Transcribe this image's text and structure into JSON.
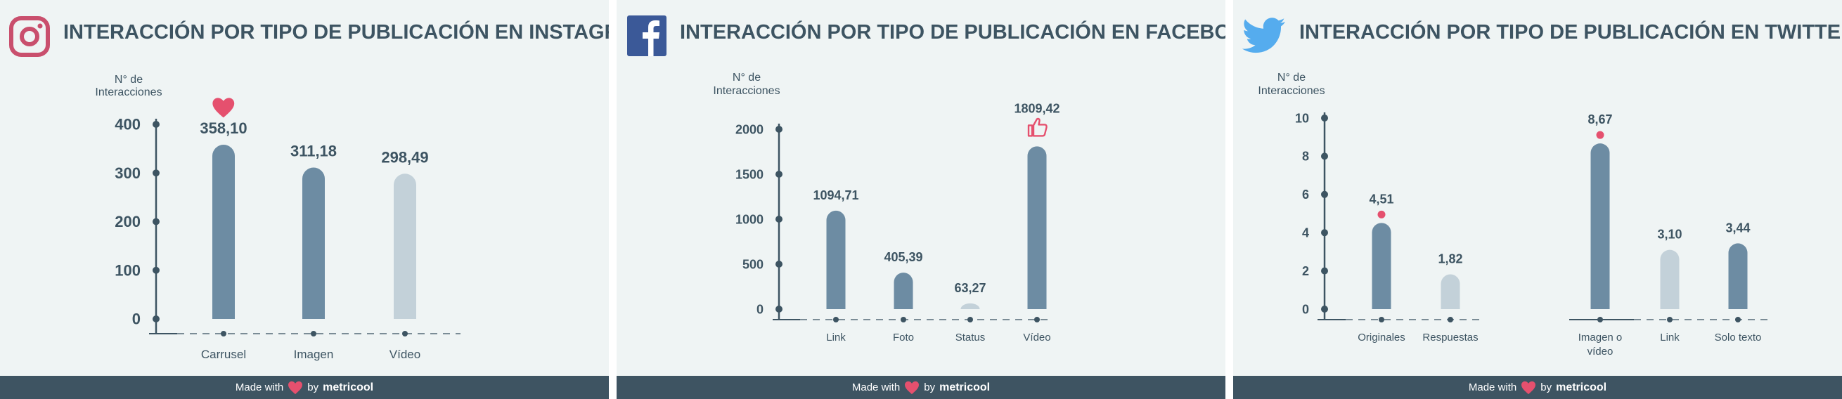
{
  "footer": {
    "made_with": "Made with",
    "by": "by",
    "brand": "metricool"
  },
  "colors": {
    "dark": "#6d8ca3",
    "light": "#c3d1d9",
    "accent": "#e5506e",
    "axis": "#3d5462"
  },
  "chart_data": [
    {
      "type": "bar",
      "platform": "instagram",
      "title": "INTERACCIÓN POR TIPO DE PUBLICACIÓN EN INSTAGRAM",
      "ylabel_line1": "N° de",
      "ylabel_line2": "Interacciones",
      "ylim": [
        0,
        400
      ],
      "yticks": [
        0,
        100,
        200,
        300,
        400
      ],
      "categories": [
        "Carrusel",
        "Imagen",
        "Vídeo"
      ],
      "values": [
        358.1,
        311.18,
        298.49
      ],
      "value_labels": [
        "358,10",
        "311,18",
        "298,49"
      ],
      "bar_colors": [
        "dark",
        "dark",
        "light"
      ],
      "highlight_icon": "heart-icon",
      "highlight_index": 0
    },
    {
      "type": "bar",
      "platform": "facebook",
      "title": "INTERACCIÓN POR TIPO DE PUBLICACIÓN EN FACEBOOK",
      "ylabel_line1": "N° de",
      "ylabel_line2": "Interacciones",
      "ylim": [
        0,
        2000
      ],
      "yticks": [
        0,
        500,
        1000,
        1500,
        2000
      ],
      "categories": [
        "Link",
        "Foto",
        "Status",
        "Vídeo"
      ],
      "values": [
        1094.71,
        405.39,
        63.27,
        1809.42
      ],
      "value_labels": [
        "1094,71",
        "405,39",
        "63,27",
        "1809,42"
      ],
      "bar_colors": [
        "dark",
        "dark",
        "light",
        "dark"
      ],
      "highlight_icon": "thumbs-up-icon",
      "highlight_index": 3
    },
    {
      "type": "bar",
      "platform": "twitter",
      "title": "INTERACCIÓN POR TIPO DE PUBLICACIÓN EN TWITTER",
      "ylabel_line1": "N° de",
      "ylabel_line2": "Interacciones",
      "ylim": [
        0,
        10
      ],
      "yticks": [
        0,
        2,
        4,
        6,
        8,
        10
      ],
      "categories": [
        "Originales",
        "Respuestas",
        "Imagen o vídeo",
        "Link",
        "Solo texto"
      ],
      "category_lines": [
        [
          "Originales"
        ],
        [
          "Respuestas"
        ],
        [
          "Imagen o",
          "vídeo"
        ],
        [
          "Link"
        ],
        [
          "Solo texto"
        ]
      ],
      "values": [
        4.51,
        1.82,
        8.67,
        3.1,
        3.44
      ],
      "value_labels": [
        "4,51",
        "1,82",
        "8,67",
        "3,10",
        "3,44"
      ],
      "bar_colors": [
        "dark",
        "light",
        "dark",
        "light",
        "dark"
      ],
      "highlight_icon": "dot-icon",
      "highlight_indices": [
        0,
        2
      ]
    }
  ]
}
